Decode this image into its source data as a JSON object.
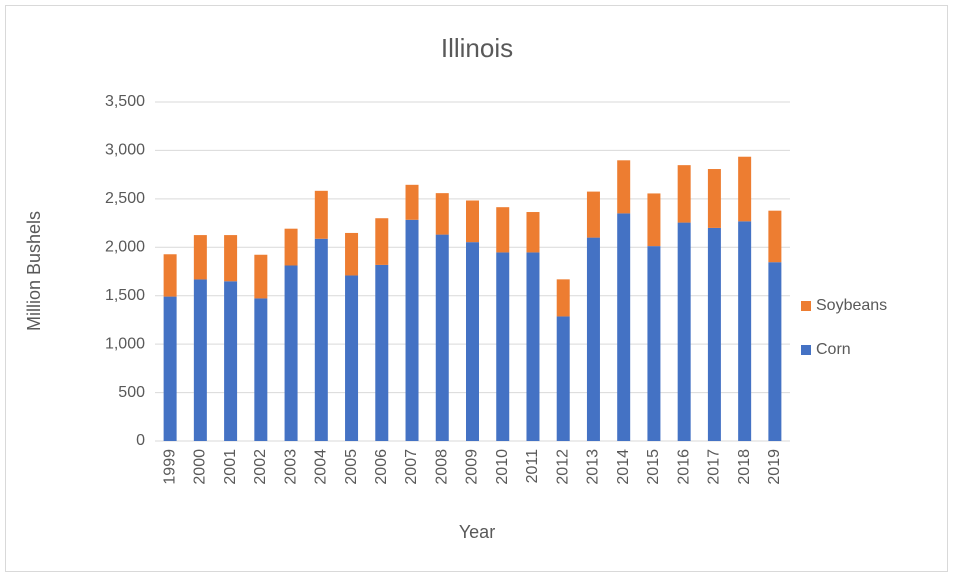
{
  "chart_data": {
    "type": "stacked_bar",
    "title": "Illinois",
    "x_label": "Year",
    "y_label": "Million Bushels",
    "categories": [
      "1999",
      "2000",
      "2001",
      "2002",
      "2003",
      "2004",
      "2005",
      "2006",
      "2007",
      "2008",
      "2009",
      "2010",
      "2011",
      "2012",
      "2013",
      "2014",
      "2015",
      "2016",
      "2017",
      "2018",
      "2019"
    ],
    "series": [
      {
        "name": "Corn",
        "color": "#4472c4",
        "values": [
          1491,
          1668,
          1649,
          1472,
          1812,
          2088,
          1709,
          1818,
          2284,
          2131,
          2053,
          1947,
          1947,
          1286,
          2100,
          2350,
          2012,
          2255,
          2200,
          2268,
          1846
        ]
      },
      {
        "name": "Soybeans",
        "color": "#ed7d31",
        "values": [
          437,
          458,
          477,
          451,
          380,
          495,
          439,
          482,
          361,
          428,
          430,
          467,
          417,
          383,
          475,
          548,
          544,
          593,
          608,
          667,
          532
        ]
      }
    ],
    "ylim": [
      0,
      3500
    ],
    "yticks": [
      0,
      500,
      {
        "value": 1000,
        "label": "1,000"
      },
      {
        "value": 1500,
        "label": "1,500"
      },
      {
        "value": 2000,
        "label": "2,000"
      },
      {
        "value": 2500,
        "label": "2,500"
      },
      {
        "value": 3000,
        "label": "3,000"
      },
      {
        "value": 3500,
        "label": "3,500"
      }
    ],
    "grid": true,
    "legend": "right"
  }
}
